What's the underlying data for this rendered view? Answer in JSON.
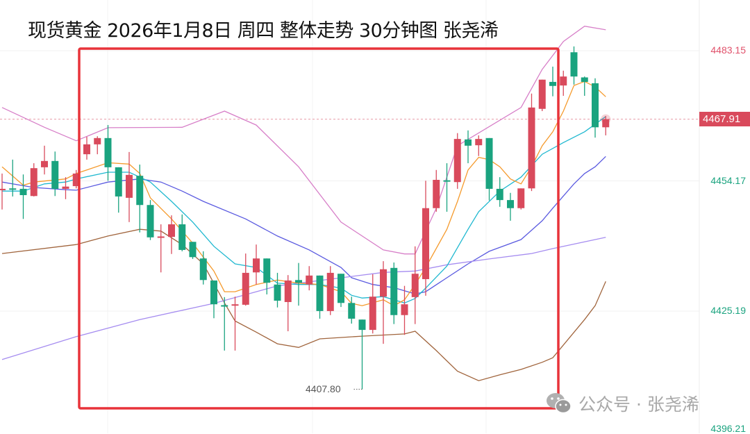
{
  "title": "现货黄金 2026年1月8日 周四 整体走势 30分钟图  张尧浠",
  "watermark": "公众号 · 张尧浠",
  "colors": {
    "up": "#d94a5c",
    "down": "#1aa37f",
    "box": "#e8333a",
    "upper_band": "#d77fc8",
    "lower_band": "#a0643c",
    "ma_blue": "#5a5ae0",
    "ma_lavender": "#a58cf0",
    "ma_cyan": "#1fb8d0",
    "ma_orange": "#f59a2c"
  },
  "chart_data": {
    "type": "candlestick",
    "title": "现货黄金 2026年1月8日 周四 整体走势 30分钟图  张尧浠",
    "interval": "30分钟",
    "y_axis_ticks": [
      "4483.15",
      "4454.17",
      "4425.19",
      "4396.21"
    ],
    "current_price": "4467.91",
    "low_annotation": "4407.80",
    "ylim": [
      4393.0,
      4494.4
    ],
    "grid": true,
    "candles_ohlc": [
      [
        4452.2,
        4455.8,
        4447.8,
        4452.4
      ],
      [
        4452.5,
        4458.9,
        4450.7,
        4452.3
      ],
      [
        4452.4,
        4455.6,
        4445.7,
        4451.0
      ],
      [
        4450.8,
        4458.1,
        4450.7,
        4457.0
      ],
      [
        4457.2,
        4462.0,
        4455.6,
        4458.6
      ],
      [
        4458.6,
        4460.7,
        4450.8,
        4452.4
      ],
      [
        4452.4,
        4455.0,
        4450.1,
        4452.9
      ],
      [
        4453.0,
        4456.6,
        4452.5,
        4455.8
      ],
      [
        4460.1,
        4464.0,
        4458.9,
        4462.3
      ],
      [
        4462.3,
        4464.1,
        4460.1,
        4463.7
      ],
      [
        4463.7,
        4466.6,
        4454.2,
        4457.2
      ],
      [
        4457.2,
        4457.2,
        4447.1,
        4450.7
      ],
      [
        4450.4,
        4460.6,
        4445.0,
        4455.5
      ],
      [
        4455.3,
        4457.8,
        4442.7,
        4448.8
      ],
      [
        4448.8,
        4449.9,
        4441.0,
        4441.6
      ],
      [
        4441.6,
        4444.5,
        4433.8,
        4441.8
      ],
      [
        4441.7,
        4446.5,
        4437.9,
        4444.5
      ],
      [
        4444.5,
        4446.7,
        4438.5,
        4438.8
      ],
      [
        4440.6,
        4440.6,
        4436.8,
        4437.2
      ],
      [
        4436.9,
        4438.5,
        4431.1,
        4432.1
      ],
      [
        4432.0,
        4432.0,
        4423.6,
        4426.7
      ],
      [
        4426.5,
        4428.3,
        4416.4,
        4426.3
      ],
      [
        4426.5,
        4428.4,
        4416.4,
        4426.7
      ],
      [
        4426.6,
        4438.0,
        4426.4,
        4433.7
      ],
      [
        4433.8,
        4440.0,
        4431.1,
        4436.9
      ],
      [
        4436.9,
        4436.9,
        4428.9,
        4431.5
      ],
      [
        4431.1,
        4433.7,
        4426.0,
        4427.5
      ],
      [
        4427.2,
        4433.2,
        4420.7,
        4432.0
      ],
      [
        4432.1,
        4435.9,
        4426.4,
        4431.5
      ],
      [
        4431.1,
        4435.2,
        4429.8,
        4433.1
      ],
      [
        4433.1,
        4433.1,
        4423.5,
        4425.2
      ],
      [
        4425.2,
        4435.2,
        4424.3,
        4433.7
      ],
      [
        4433.5,
        4433.5,
        4426.1,
        4427.0
      ],
      [
        4427.0,
        4428.4,
        4422.4,
        4423.5
      ],
      [
        4423.3,
        4423.3,
        4407.8,
        4421.0
      ],
      [
        4421.0,
        4433.4,
        4420.2,
        4428.4
      ],
      [
        4428.4,
        4436.3,
        4417.9,
        4434.5
      ],
      [
        4434.8,
        4436.0,
        4422.3,
        4424.3
      ],
      [
        4424.3,
        4430.8,
        4419.9,
        4426.7
      ],
      [
        4428.3,
        4439.6,
        4422.3,
        4433.5
      ],
      [
        4432.3,
        4454.2,
        4428.6,
        4448.1
      ],
      [
        4448.1,
        4456.6,
        4447.3,
        4454.4
      ],
      [
        4454.3,
        4458.1,
        4447.3,
        4454.1
      ],
      [
        4453.9,
        4464.8,
        4452.4,
        4463.5
      ],
      [
        4463.4,
        4465.4,
        4458.1,
        4462.0
      ],
      [
        4462.1,
        4464.3,
        4459.7,
        4463.5
      ],
      [
        4463.7,
        4463.7,
        4449.8,
        4452.4
      ],
      [
        4452.4,
        4455.0,
        4448.4,
        4449.9
      ],
      [
        4449.9,
        4451.5,
        4445.3,
        4448.1
      ],
      [
        4448.1,
        4452.5,
        4447.8,
        4452.5
      ],
      [
        4452.5,
        4473.6,
        4451.9,
        4470.5
      ],
      [
        4470.2,
        4476.7,
        4469.7,
        4476.7
      ],
      [
        4476.2,
        4479.6,
        4473.0,
        4475.3
      ],
      [
        4475.4,
        4478.7,
        4473.1,
        4477.4
      ],
      [
        4482.8,
        4484.1,
        4475.6,
        4477.4
      ],
      [
        4477.2,
        4477.4,
        4473.1,
        4476.2
      ],
      [
        4475.9,
        4477.0,
        4463.8,
        4466.1
      ],
      [
        4466.1,
        4468.6,
        4464.3,
        4467.91
      ]
    ],
    "lines": [
      {
        "key": "upper_band",
        "points": [
          [
            0,
            4470.5
          ],
          [
            4,
            4466.1
          ],
          [
            7,
            4463.1
          ],
          [
            10,
            4466.0
          ],
          [
            17,
            4466.1
          ],
          [
            21,
            4469.7
          ],
          [
            24,
            4466.6
          ],
          [
            28,
            4457.3
          ],
          [
            32,
            4445.0
          ],
          [
            36,
            4438.8
          ],
          [
            38,
            4437.9
          ],
          [
            39,
            4437.9
          ],
          [
            41,
            4448.1
          ],
          [
            43,
            4462.0
          ],
          [
            49,
            4470.5
          ],
          [
            51,
            4479.0
          ],
          [
            53,
            4485.2
          ],
          [
            55,
            4488.6
          ],
          [
            57,
            4487.8
          ]
        ]
      },
      {
        "key": "lower_band",
        "points": [
          [
            0,
            4438.0
          ],
          [
            7,
            4440.0
          ],
          [
            10,
            4441.9
          ],
          [
            13,
            4443.4
          ],
          [
            15,
            4443.0
          ],
          [
            17,
            4440.0
          ],
          [
            19,
            4435.7
          ],
          [
            21,
            4427.0
          ],
          [
            22,
            4423.0
          ],
          [
            24,
            4420.5
          ],
          [
            26,
            4417.9
          ],
          [
            28,
            4417.1
          ],
          [
            30,
            4419.0
          ],
          [
            34,
            4419.6
          ],
          [
            38,
            4420.1
          ],
          [
            39,
            4420.7
          ],
          [
            41,
            4416.4
          ],
          [
            43,
            4411.8
          ],
          [
            45,
            4409.7
          ],
          [
            47,
            4411.0
          ],
          [
            49,
            4412.2
          ],
          [
            51,
            4413.8
          ],
          [
            52,
            4414.8
          ],
          [
            55,
            4423.3
          ],
          [
            56,
            4426.4
          ],
          [
            57,
            4431.8
          ]
        ]
      },
      {
        "key": "ma_blue",
        "points": [
          [
            0,
            4453.9
          ],
          [
            3,
            4452.7
          ],
          [
            6,
            4452.2
          ],
          [
            7,
            4452.1
          ],
          [
            10,
            4453.9
          ],
          [
            13,
            4454.6
          ],
          [
            15,
            4453.9
          ],
          [
            17,
            4451.9
          ],
          [
            19,
            4449.6
          ],
          [
            23,
            4445.7
          ],
          [
            26,
            4441.9
          ],
          [
            29,
            4438.8
          ],
          [
            32,
            4434.9
          ],
          [
            33,
            4432.6
          ],
          [
            35,
            4431.1
          ],
          [
            37,
            4430.4
          ],
          [
            39,
            4429.0
          ],
          [
            40,
            4429.5
          ],
          [
            42,
            4432.6
          ],
          [
            44,
            4435.7
          ],
          [
            46,
            4438.5
          ],
          [
            49,
            4441.1
          ],
          [
            51,
            4445.3
          ],
          [
            52,
            4448.1
          ],
          [
            54,
            4453.5
          ],
          [
            55,
            4455.8
          ],
          [
            56,
            4457.3
          ],
          [
            57,
            4459.6
          ]
        ]
      },
      {
        "key": "ma_lavender",
        "points": [
          [
            0,
            4414.4
          ],
          [
            7,
            4419.5
          ],
          [
            13,
            4423.3
          ],
          [
            20,
            4426.9
          ],
          [
            26,
            4430.8
          ],
          [
            33,
            4432.9
          ],
          [
            36,
            4433.8
          ],
          [
            39,
            4434.1
          ],
          [
            42,
            4435.5
          ],
          [
            46,
            4436.8
          ],
          [
            50,
            4438.0
          ],
          [
            52,
            4439.1
          ],
          [
            57,
            4441.6
          ]
        ]
      },
      {
        "key": "ma_cyan",
        "points": [
          [
            0,
            4451.9
          ],
          [
            2,
            4451.9
          ],
          [
            4,
            4453.5
          ],
          [
            6,
            4453.9
          ],
          [
            7,
            4454.6
          ],
          [
            10,
            4456.1
          ],
          [
            12,
            4456.1
          ],
          [
            14,
            4453.9
          ],
          [
            16,
            4449.6
          ],
          [
            18,
            4445.0
          ],
          [
            20,
            4439.6
          ],
          [
            22,
            4435.7
          ],
          [
            24,
            4434.9
          ],
          [
            26,
            4431.4
          ],
          [
            28,
            4431.1
          ],
          [
            30,
            4431.1
          ],
          [
            32,
            4430.3
          ],
          [
            33,
            4428.7
          ],
          [
            34,
            4428.1
          ],
          [
            36,
            4428.4
          ],
          [
            38,
            4427.0
          ],
          [
            39,
            4428.0
          ],
          [
            40,
            4430.3
          ],
          [
            42,
            4435.2
          ],
          [
            44,
            4443.4
          ],
          [
            45,
            4447.3
          ],
          [
            47,
            4451.9
          ],
          [
            49,
            4455.0
          ],
          [
            51,
            4460.1
          ],
          [
            53,
            4462.7
          ],
          [
            55,
            4465.1
          ],
          [
            57,
            4468.5
          ]
        ]
      },
      {
        "key": "ma_orange",
        "points": [
          [
            0,
            4457.3
          ],
          [
            2,
            4453.2
          ],
          [
            3,
            4453.9
          ],
          [
            6,
            4454.6
          ],
          [
            7,
            4455.8
          ],
          [
            8,
            4456.6
          ],
          [
            10,
            4458.2
          ],
          [
            12,
            4457.9
          ],
          [
            13,
            4455.8
          ],
          [
            14,
            4450.4
          ],
          [
            16,
            4445.7
          ],
          [
            18,
            4440.3
          ],
          [
            20,
            4434.1
          ],
          [
            21,
            4429.5
          ],
          [
            22,
            4429.5
          ],
          [
            24,
            4431.1
          ],
          [
            26,
            4432.1
          ],
          [
            28,
            4431.4
          ],
          [
            30,
            4431.1
          ],
          [
            32,
            4429.5
          ],
          [
            33,
            4426.9
          ],
          [
            34,
            4426.4
          ],
          [
            36,
            4427.7
          ],
          [
            37,
            4426.4
          ],
          [
            38,
            4427.7
          ],
          [
            39,
            4431.1
          ],
          [
            40,
            4434.9
          ],
          [
            42,
            4443.4
          ],
          [
            43,
            4449.6
          ],
          [
            44,
            4456.6
          ],
          [
            45,
            4459.4
          ],
          [
            46,
            4458.9
          ],
          [
            47,
            4457.3
          ],
          [
            48,
            4454.6
          ],
          [
            49,
            4453.5
          ],
          [
            50,
            4457.3
          ],
          [
            51,
            4462.0
          ],
          [
            52,
            4465.1
          ],
          [
            53,
            4469.7
          ],
          [
            54,
            4475.4
          ],
          [
            55,
            4476.3
          ],
          [
            56,
            4475.1
          ],
          [
            57,
            4472.9
          ]
        ]
      }
    ]
  },
  "axis_label_colors": {
    "4483.15": "#e0506a",
    "4454.17": "#1aa37f",
    "4425.19": "#1aa37f",
    "4396.21": "#1aa37f"
  }
}
